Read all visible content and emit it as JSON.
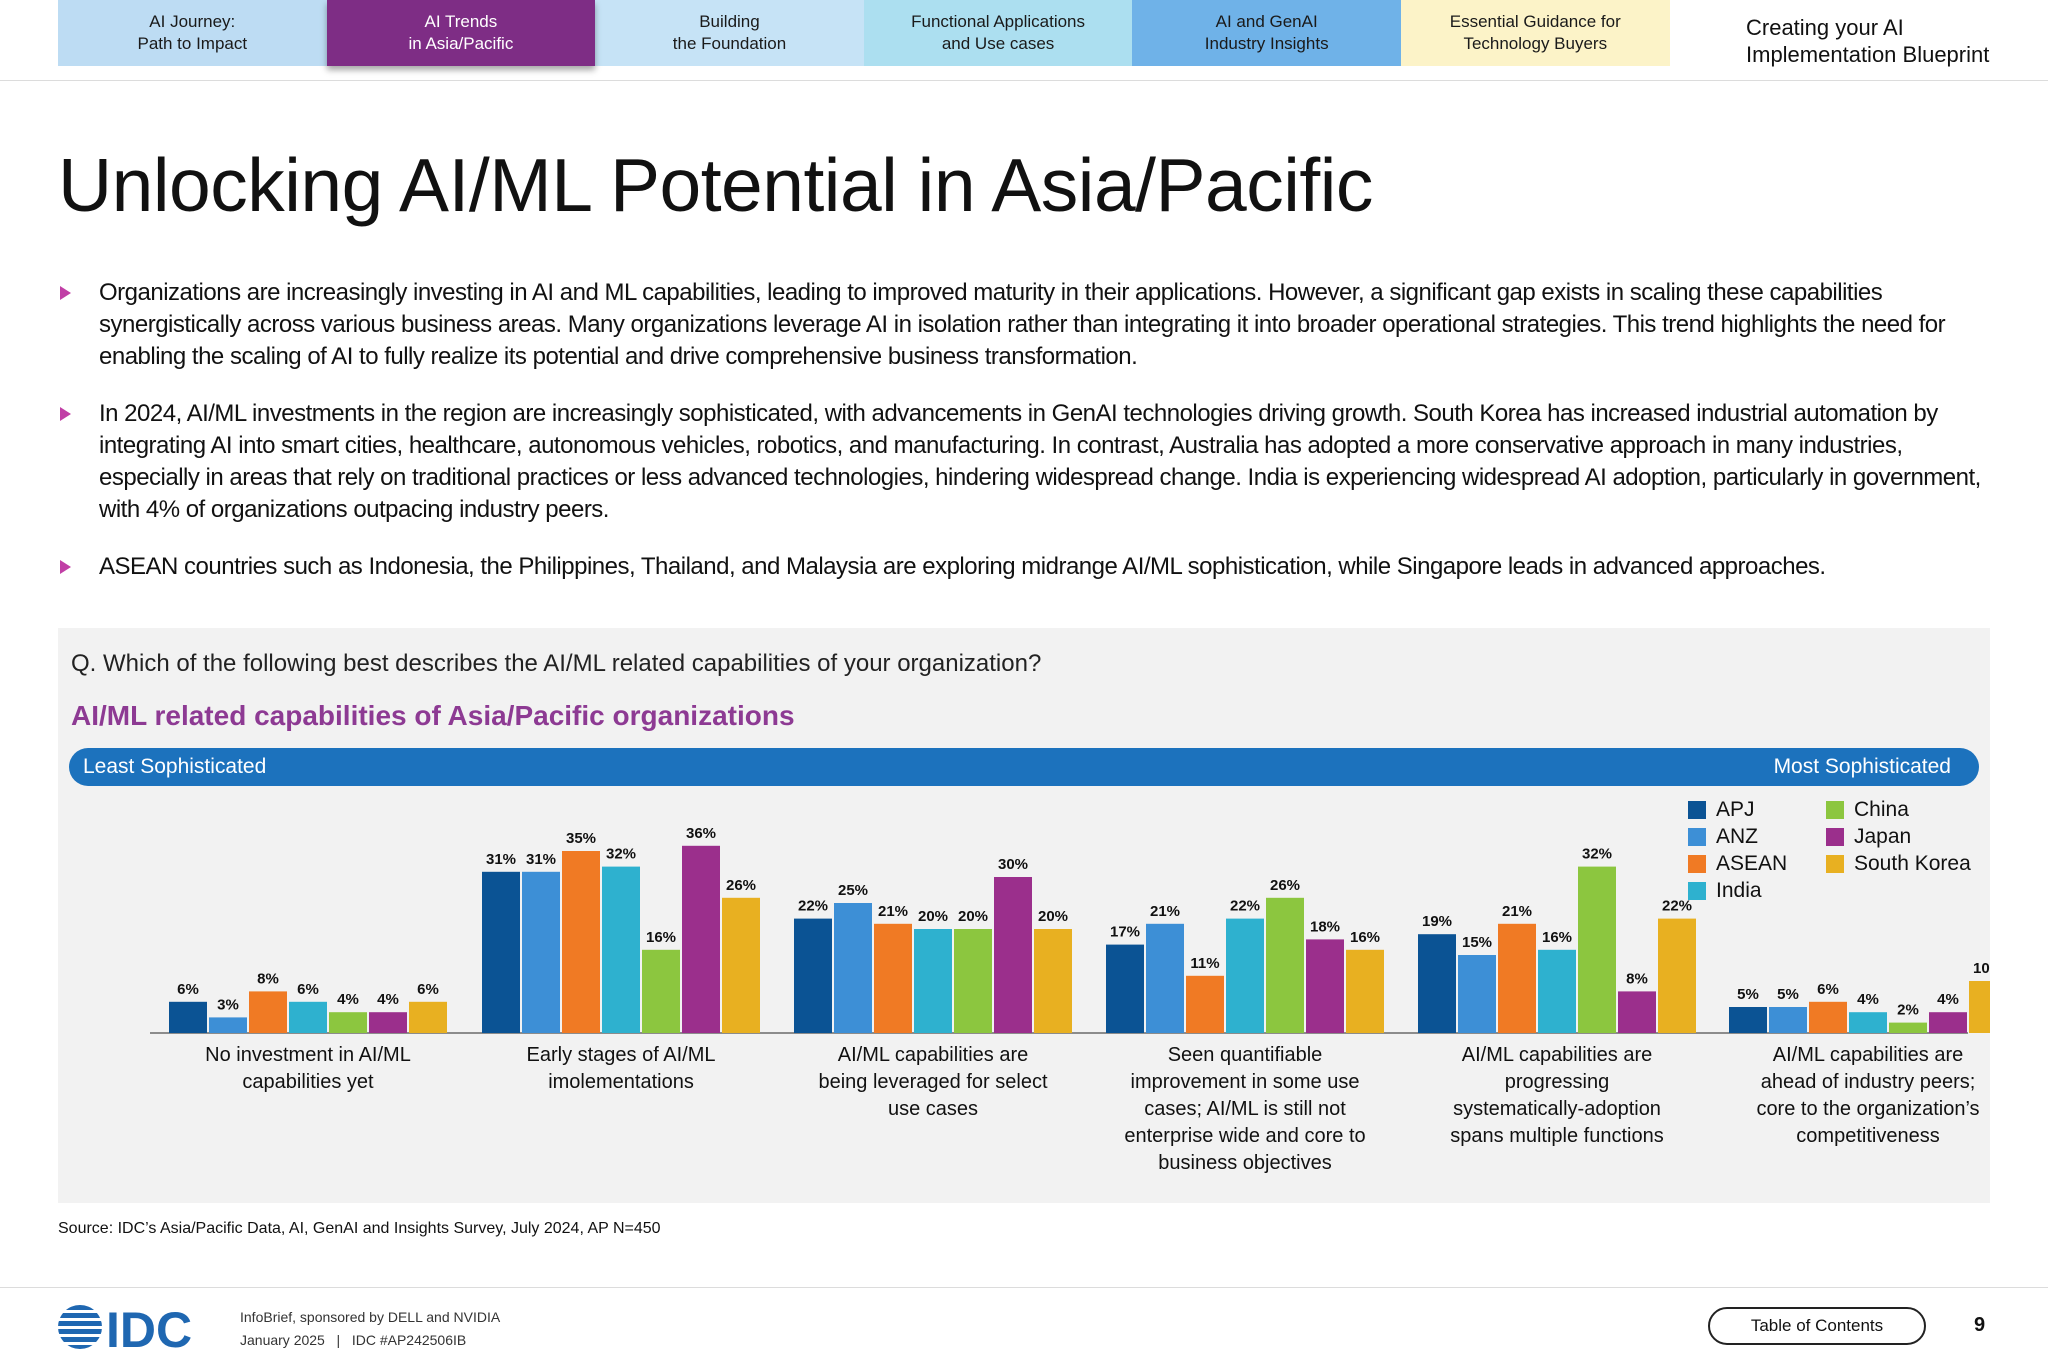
{
  "nav": {
    "tabs": [
      {
        "label": "AI Journey:\nPath to Impact",
        "bg": "#bddcf3",
        "active": false
      },
      {
        "label": "AI Trends\nin Asia/Pacific",
        "bg": "#7e2d85",
        "active": true
      },
      {
        "label": "Building\nthe Foundation",
        "bg": "#c6e3f6",
        "active": false
      },
      {
        "label": "Functional Applications\nand Use cases",
        "bg": "#acdff0",
        "active": false
      },
      {
        "label": "AI and GenAI\nIndustry Insights",
        "bg": "#6fb2e8",
        "active": false
      },
      {
        "label": "Essential Guidance for\nTechnology Buyers",
        "bg": "#fcf3c8",
        "active": false
      }
    ],
    "last_tab": "Creating your AI\nImplementation Blueprint"
  },
  "page_title": "Unlocking AI/ML Potential in Asia/Pacific",
  "bullets": [
    "Organizations are increasingly investing in AI and ML capabilities, leading to improved maturity in their applications. However, a significant gap exists in scaling these capabilities synergistically across various business areas. Many organizations leverage AI in isolation rather than integrating it into broader operational strategies. This trend highlights the need for enabling the scaling of AI to fully realize its potential and drive comprehensive business transformation.",
    "In 2024, AI/ML investments in the region are increasingly sophisticated, with advancements in GenAI technologies driving growth. South Korea has increased industrial automation by integrating AI into smart cities, healthcare, autonomous vehicles, robotics, and manufacturing. In contrast, Australia has adopted a more conservative approach in many industries, especially in areas that rely on traditional practices or less advanced technologies, hindering widespread change. India is experiencing widespread AI adoption, particularly in government, with 4% of organizations outpacing industry peers.",
    "ASEAN countries such as Indonesia, the Philippines, Thailand, and Malaysia are exploring midrange AI/ML sophistication, while Singapore leads in advanced approaches."
  ],
  "chart_panel": {
    "question": "Q. Which of the following best describes the AI/ML related capabilities of your organization?",
    "least_label": "Least Sophisticated",
    "most_label": "Most Sophisticated"
  },
  "chart_data": {
    "type": "bar",
    "title": "AI/ML related capabilities of Asia/Pacific organizations",
    "unit": "%",
    "categories": [
      "No investment in AI/ML capabilities yet",
      "Early stages of AI/ML imolementations",
      "AI/ML capabilities are being leveraged for select use cases",
      "Seen quantifiable improvement in some use cases; AI/ML is still not enterprise wide and core to business objectives",
      "AI/ML capabilities are progressing systematically-adoption spans multiple functions",
      "AI/ML capabilities are ahead of industry peers; core to the organization’s competitiveness"
    ],
    "series": [
      {
        "name": "APJ",
        "color": "#0b5394",
        "values": [
          6,
          31,
          22,
          17,
          19,
          5
        ]
      },
      {
        "name": "ANZ",
        "color": "#3d8fd6",
        "values": [
          3,
          31,
          25,
          21,
          15,
          5
        ]
      },
      {
        "name": "ASEAN",
        "color": "#f07a24",
        "values": [
          8,
          35,
          21,
          11,
          21,
          6
        ]
      },
      {
        "name": "India",
        "color": "#2eb1cf",
        "values": [
          6,
          32,
          20,
          22,
          16,
          4
        ]
      },
      {
        "name": "China",
        "color": "#8cc63f",
        "values": [
          4,
          16,
          20,
          26,
          32,
          2
        ]
      },
      {
        "name": "Japan",
        "color": "#9b2f8c",
        "values": [
          4,
          36,
          30,
          18,
          8,
          4
        ]
      },
      {
        "name": "South Korea",
        "color": "#e8b021",
        "values": [
          6,
          26,
          20,
          16,
          22,
          10
        ]
      }
    ],
    "ylim": [
      0,
      36
    ],
    "legend_position": "top-right"
  },
  "source": "Source: IDC’s Asia/Pacific Data, AI, GenAI and Insights Survey, July 2024, AP N=450",
  "footer": {
    "logo_text": "IDC",
    "line1": "InfoBrief, sponsored by DELL and NVIDIA",
    "line2": "January 2025   |   IDC #AP242506IB",
    "toc_label": "Table of Contents",
    "page_number": "9"
  }
}
